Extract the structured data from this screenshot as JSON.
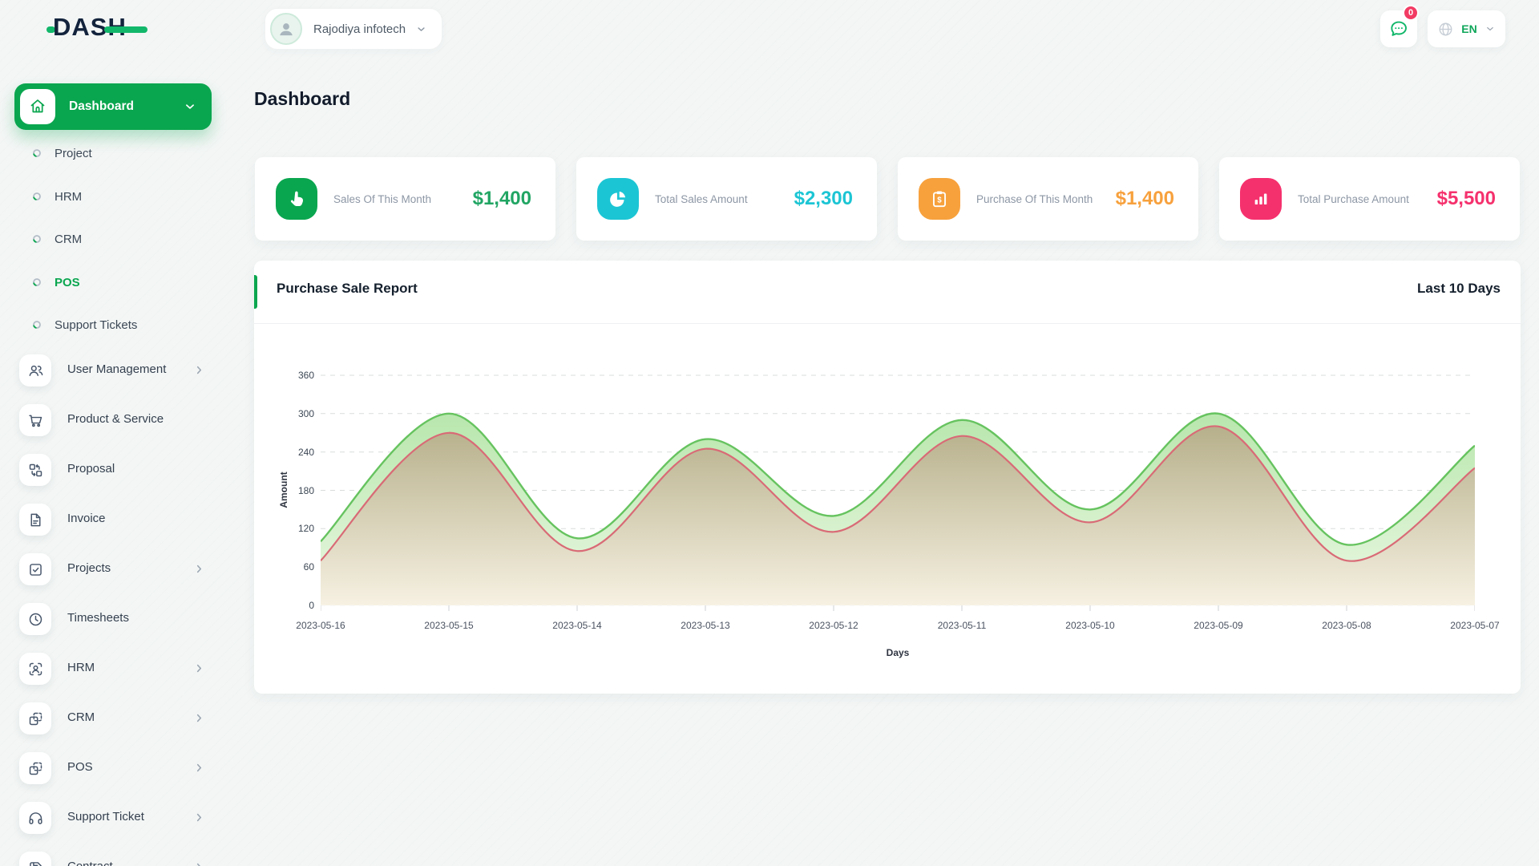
{
  "brand": {
    "logo_text": "DASH"
  },
  "header": {
    "company_name": "Rajodiya infotech",
    "messages_badge": "0",
    "language_code": "EN"
  },
  "page": {
    "title": "Dashboard"
  },
  "sidebar": {
    "active_label": "Dashboard",
    "sub_items": [
      {
        "label": "Project",
        "active": false
      },
      {
        "label": "HRM",
        "active": false
      },
      {
        "label": "CRM",
        "active": false
      },
      {
        "label": "POS",
        "active": true
      },
      {
        "label": "Support Tickets",
        "active": false
      }
    ],
    "items": [
      {
        "label": "User Management",
        "icon": "users",
        "chevron": true
      },
      {
        "label": "Product & Service",
        "icon": "cart",
        "chevron": false
      },
      {
        "label": "Proposal",
        "icon": "swap",
        "chevron": false
      },
      {
        "label": "Invoice",
        "icon": "file",
        "chevron": false
      },
      {
        "label": "Projects",
        "icon": "check-square",
        "chevron": true
      },
      {
        "label": "Timesheets",
        "icon": "clock",
        "chevron": false
      },
      {
        "label": "HRM",
        "icon": "user-focus",
        "chevron": true
      },
      {
        "label": "CRM",
        "icon": "browsers",
        "chevron": true
      },
      {
        "label": "POS",
        "icon": "browsers",
        "chevron": true
      },
      {
        "label": "Support Ticket",
        "icon": "headset",
        "chevron": true
      },
      {
        "label": "Contract",
        "icon": "floppy",
        "chevron": true
      }
    ]
  },
  "stat_cards": [
    {
      "label": "Sales Of This Month",
      "value": "$1,400",
      "icon": "hand",
      "icon_color": "#0aa64f",
      "value_color": "#21a563"
    },
    {
      "label": "Total Sales Amount",
      "value": "$2,300",
      "icon": "pie",
      "icon_color": "#1cc5d4",
      "value_color": "#1cc5d4"
    },
    {
      "label": "Purchase Of This Month",
      "value": "$1,400",
      "icon": "clipboard-dollar",
      "icon_color": "#f7a13d",
      "value_color": "#f7a13d"
    },
    {
      "label": "Total Purchase Amount",
      "value": "$5,500",
      "icon": "bar-chart",
      "icon_color": "#f5316d",
      "value_color": "#f5316d"
    }
  ],
  "report": {
    "title": "Purchase Sale Report",
    "range_label": "Last 10 Days"
  },
  "chart_data": {
    "type": "area",
    "x": [
      "2023-05-16",
      "2023-05-15",
      "2023-05-14",
      "2023-05-13",
      "2023-05-12",
      "2023-05-11",
      "2023-05-10",
      "2023-05-09",
      "2023-05-08",
      "2023-05-07"
    ],
    "series": [
      {
        "name": "green",
        "line_color": "#66c35f",
        "fill_top": "#aee3a2",
        "fill_bottom": "#ebf8e3",
        "values": [
          100,
          300,
          105,
          260,
          140,
          290,
          150,
          300,
          95,
          250
        ]
      },
      {
        "name": "red",
        "line_color": "#d96a76",
        "fill_top": "#a59d72",
        "fill_bottom": "#f6f1e2",
        "values": [
          70,
          270,
          85,
          245,
          115,
          265,
          130,
          280,
          70,
          215
        ]
      }
    ],
    "xlabel": "Days",
    "ylabel": "Amount",
    "ylim": [
      0,
      360
    ],
    "yticks": [
      0,
      60,
      120,
      180,
      240,
      300,
      360
    ],
    "grid": "dashed",
    "legend": "none",
    "curve": "smooth-spline"
  }
}
